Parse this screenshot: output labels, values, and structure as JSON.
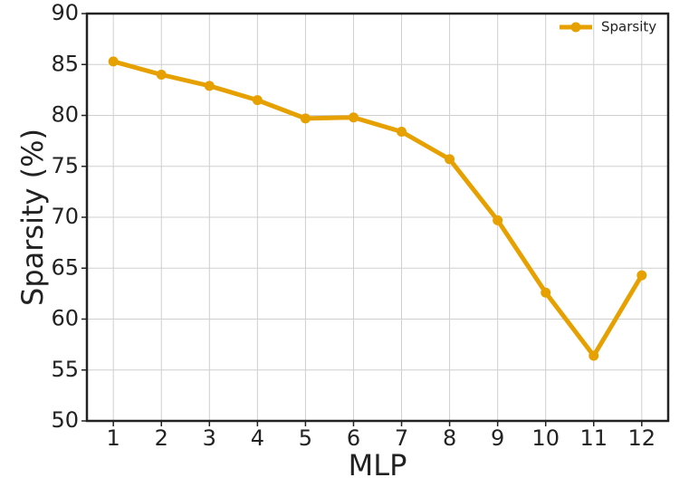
{
  "chart_data": {
    "type": "line",
    "xlabel": "MLP",
    "ylabel": "Sparsity (%)",
    "x": [
      1,
      2,
      3,
      4,
      5,
      6,
      7,
      8,
      9,
      10,
      11,
      12
    ],
    "series": [
      {
        "name": "Sparsity",
        "color": "#e6a100",
        "values": [
          85.3,
          84.0,
          82.9,
          81.5,
          79.7,
          79.8,
          78.4,
          75.7,
          69.7,
          62.6,
          56.4,
          64.3
        ]
      }
    ],
    "xlim": [
      0.45,
      12.55
    ],
    "xticks": [
      1,
      2,
      3,
      4,
      5,
      6,
      7,
      8,
      9,
      10,
      11,
      12
    ],
    "ylim": [
      50,
      90
    ],
    "yticks": [
      50,
      55,
      60,
      65,
      70,
      75,
      80,
      85,
      90
    ],
    "grid": true,
    "legend": "upper right"
  }
}
